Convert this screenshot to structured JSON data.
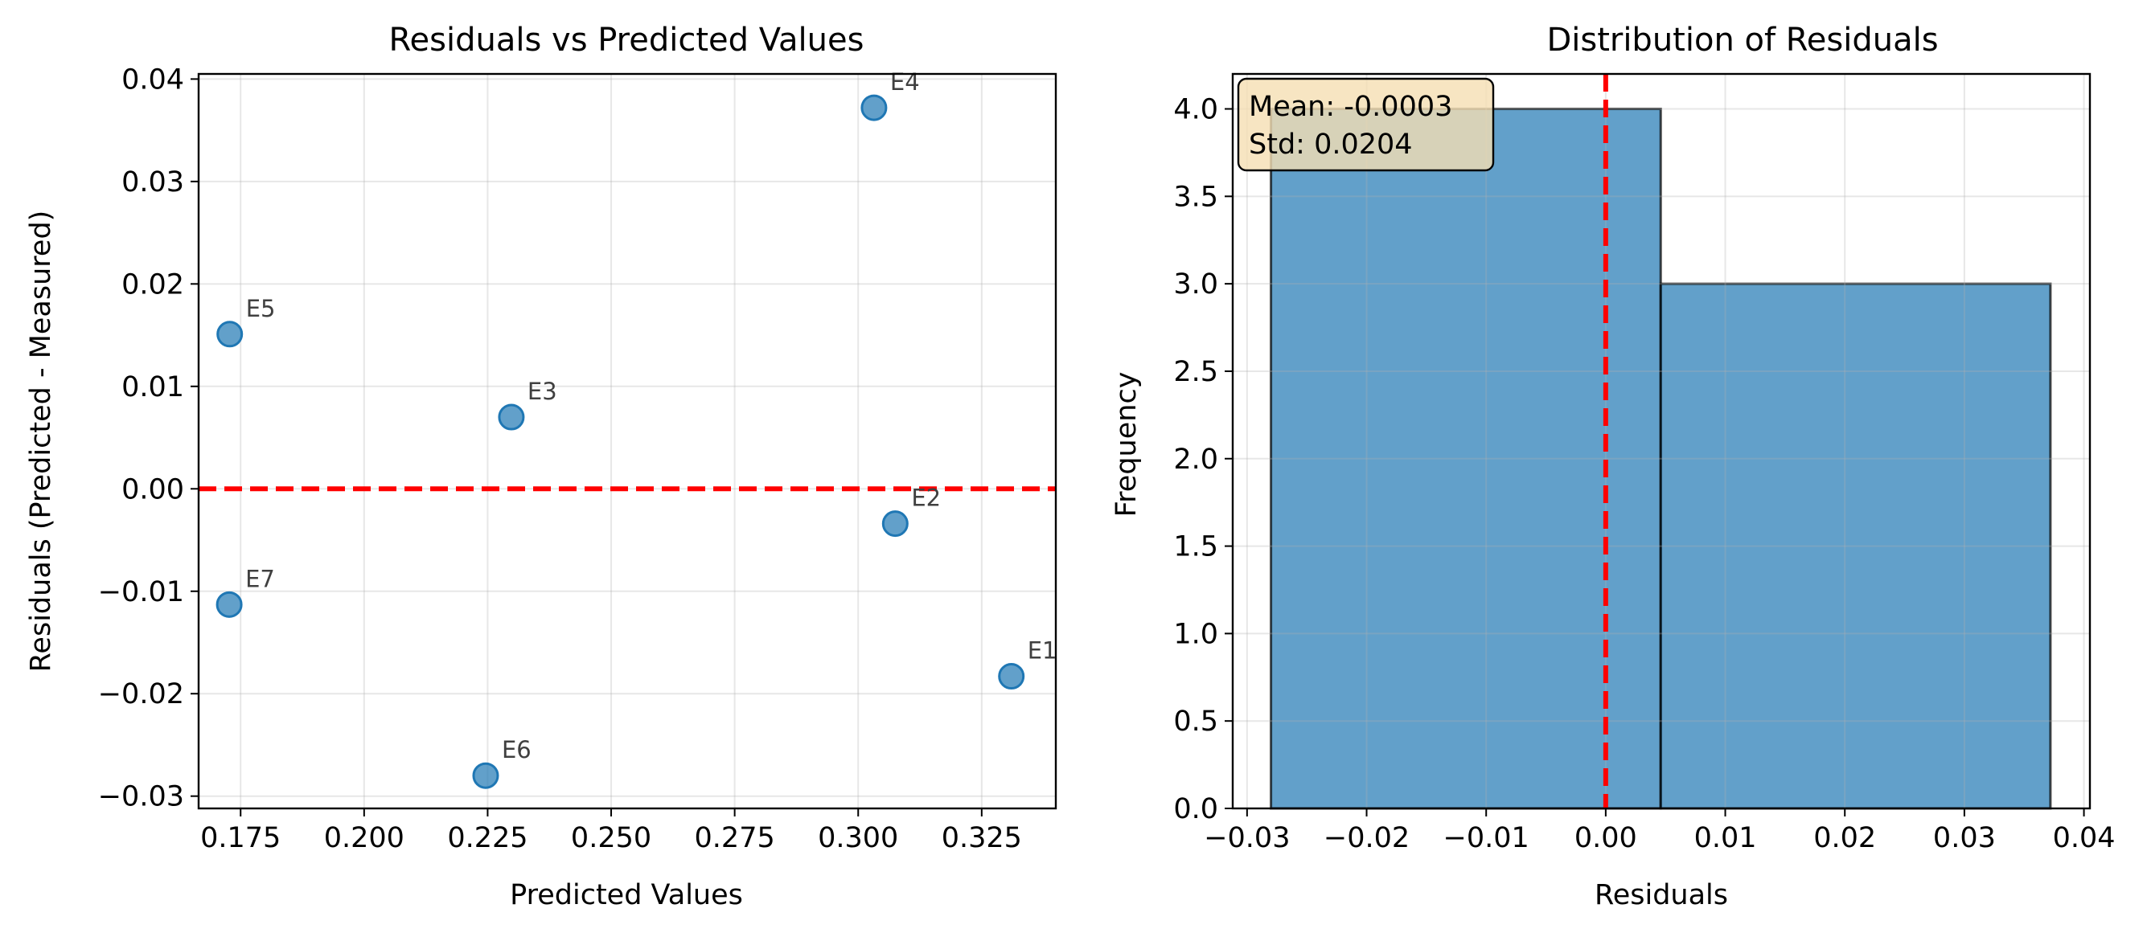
{
  "chart_data": [
    {
      "type": "scatter",
      "title": "Residuals vs Predicted Values",
      "xlabel": "Predicted Values",
      "ylabel": "Residuals (Predicted - Measured)",
      "xlim": [
        0.1665,
        0.34
      ],
      "ylim": [
        -0.0312,
        0.0405
      ],
      "xticks": [
        0.175,
        0.2,
        0.225,
        0.25,
        0.275,
        0.3,
        0.325
      ],
      "xtick_labels": [
        "0.175",
        "0.200",
        "0.225",
        "0.250",
        "0.275",
        "0.300",
        "0.325"
      ],
      "yticks": [
        -0.03,
        -0.02,
        -0.01,
        0.0,
        0.01,
        0.02,
        0.03,
        0.04
      ],
      "ytick_labels": [
        "−0.03",
        "−0.02",
        "−0.01",
        "0.00",
        "0.01",
        "0.02",
        "0.03",
        "0.04"
      ],
      "grid": true,
      "reference_line": {
        "y": 0.0,
        "color": "#ff0000",
        "style": "dashed"
      },
      "marker_color": "#1f77b4",
      "points": [
        {
          "label": "E1",
          "x": 0.331,
          "y": -0.0183
        },
        {
          "label": "E2",
          "x": 0.3075,
          "y": -0.0034
        },
        {
          "label": "E3",
          "x": 0.2298,
          "y": 0.007
        },
        {
          "label": "E4",
          "x": 0.3032,
          "y": 0.0372
        },
        {
          "label": "E5",
          "x": 0.1728,
          "y": 0.0151
        },
        {
          "label": "E6",
          "x": 0.2246,
          "y": -0.028
        },
        {
          "label": "E7",
          "x": 0.1727,
          "y": -0.0113
        }
      ]
    },
    {
      "type": "bar",
      "subtype": "histogram",
      "title": "Distribution of Residuals",
      "xlabel": "Residuals",
      "ylabel": "Frequency",
      "xlim": [
        -0.0312,
        0.0405
      ],
      "ylim": [
        0,
        4.2
      ],
      "xticks": [
        -0.03,
        -0.02,
        -0.01,
        0.0,
        0.01,
        0.02,
        0.03,
        0.04
      ],
      "xtick_labels": [
        "−0.03",
        "−0.02",
        "−0.01",
        "0.00",
        "0.01",
        "0.02",
        "0.03",
        "0.04"
      ],
      "yticks": [
        0.0,
        0.5,
        1.0,
        1.5,
        2.0,
        2.5,
        3.0,
        3.5,
        4.0
      ],
      "ytick_labels": [
        "0.0",
        "0.5",
        "1.0",
        "1.5",
        "2.0",
        "2.5",
        "3.0",
        "3.5",
        "4.0"
      ],
      "grid": true,
      "bar_color": "#1f77b4",
      "bins": [
        {
          "start": -0.028,
          "end": 0.0046,
          "count": 4
        },
        {
          "start": 0.0046,
          "end": 0.0372,
          "count": 3
        }
      ],
      "reference_line": {
        "x": 0.0,
        "color": "#ff0000",
        "style": "dashed"
      },
      "annotation": {
        "mean": "Mean: -0.0003",
        "std": "Std: 0.0204"
      }
    }
  ]
}
